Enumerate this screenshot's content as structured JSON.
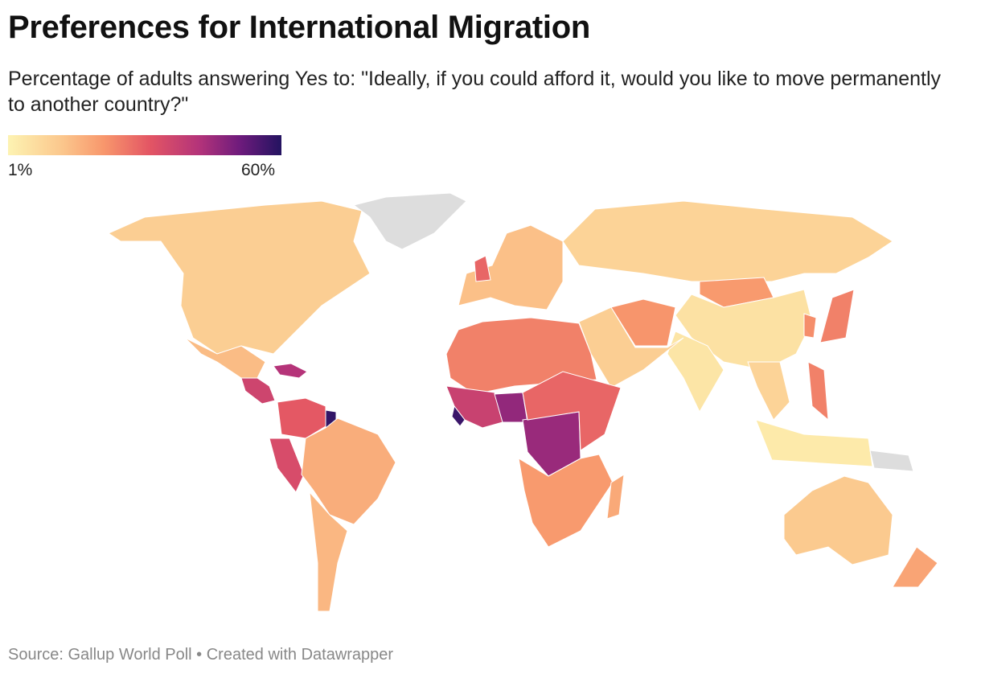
{
  "title": "Preferences for International Migration",
  "subtitle": "Percentage of adults answering Yes to: \"Ideally, if you could afford it, would you like to move permanently to another country?\"",
  "legend": {
    "min_label": "1%",
    "max_label": "60%",
    "min": 1,
    "max": 60,
    "colors": [
      "#fdf3b2",
      "#fbc68c",
      "#f8976c",
      "#e35564",
      "#b3337a",
      "#6d1b7c",
      "#231360"
    ]
  },
  "no_data_color": "#dddddd",
  "source": "Source: Gallup World Poll • Created with Datawrapper",
  "chart_data": {
    "type": "choropleth",
    "unit": "%",
    "regions": [
      {
        "name": "North America",
        "value": 9
      },
      {
        "name": "Greenland",
        "value": null
      },
      {
        "name": "Mexico",
        "value": 13
      },
      {
        "name": "Central America",
        "value": 35
      },
      {
        "name": "Haiti / Dominican Republic",
        "value": 40
      },
      {
        "name": "Colombia / Venezuela",
        "value": 30
      },
      {
        "name": "Guyana / Suriname",
        "value": 58
      },
      {
        "name": "Peru",
        "value": 33
      },
      {
        "name": "Brazil",
        "value": 16
      },
      {
        "name": "Southern Cone",
        "value": 14
      },
      {
        "name": "Europe",
        "value": 12
      },
      {
        "name": "United Kingdom",
        "value": 28
      },
      {
        "name": "Russia",
        "value": 8
      },
      {
        "name": "Mongolia",
        "value": 20
      },
      {
        "name": "China",
        "value": 5
      },
      {
        "name": "India",
        "value": 4
      },
      {
        "name": "Middle East",
        "value": 9
      },
      {
        "name": "Iran / Afghanistan",
        "value": 21
      },
      {
        "name": "North Africa",
        "value": 24
      },
      {
        "name": "West Africa",
        "value": 36
      },
      {
        "name": "Sierra Leone / Liberia",
        "value": 57
      },
      {
        "name": "Nigeria",
        "value": 45
      },
      {
        "name": "DR Congo",
        "value": 44
      },
      {
        "name": "East Africa",
        "value": 28
      },
      {
        "name": "Southern Africa",
        "value": 20
      },
      {
        "name": "Madagascar",
        "value": 17
      },
      {
        "name": "Southeast Asia",
        "value": 8
      },
      {
        "name": "Philippines",
        "value": 24
      },
      {
        "name": "Indonesia",
        "value": 3
      },
      {
        "name": "Papua New Guinea",
        "value": null
      },
      {
        "name": "Japan",
        "value": 24
      },
      {
        "name": "South Korea",
        "value": 22
      },
      {
        "name": "Australia",
        "value": 10
      },
      {
        "name": "New Zealand",
        "value": 18
      }
    ]
  }
}
